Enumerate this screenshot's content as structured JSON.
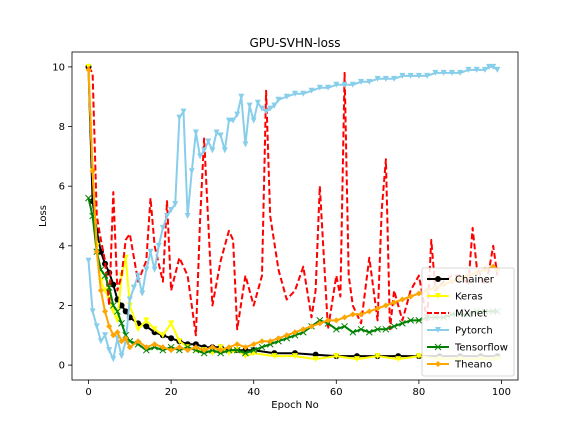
{
  "chart_data": {
    "type": "line",
    "title": "GPU-SVHN-loss",
    "xlabel": "Epoch No",
    "ylabel": "Loss",
    "xlim": [
      -4,
      104
    ],
    "ylim": [
      -0.5,
      10.5
    ],
    "xticks": [
      0,
      20,
      40,
      60,
      80,
      100
    ],
    "yticks": [
      0,
      2,
      4,
      6,
      8,
      10
    ],
    "grid": false,
    "legend_position": "lower-right",
    "series": [
      {
        "name": "Chainer",
        "color": "#000000",
        "linestyle": "solid",
        "marker": "circle",
        "x": [
          0,
          1,
          2,
          3,
          4,
          5,
          6,
          7,
          8,
          9,
          10,
          12,
          14,
          16,
          18,
          20,
          22,
          24,
          26,
          28,
          30,
          32,
          34,
          36,
          38,
          40,
          45,
          50,
          55,
          60,
          65,
          70,
          75,
          80,
          85,
          90,
          95,
          99
        ],
        "y": [
          10,
          5.5,
          4.5,
          3.8,
          3.4,
          3.1,
          2.7,
          2.2,
          2.0,
          1.8,
          1.6,
          1.4,
          1.3,
          1.1,
          1.0,
          0.9,
          0.8,
          0.7,
          0.7,
          0.6,
          0.6,
          0.6,
          0.5,
          0.5,
          0.5,
          0.5,
          0.4,
          0.4,
          0.35,
          0.3,
          0.3,
          0.3,
          0.3,
          0.3,
          0.3,
          0.3,
          0.3,
          0.3
        ]
      },
      {
        "name": "Keras",
        "color": "#ffff00",
        "linestyle": "solid",
        "marker": "triangle-down",
        "x": [
          0,
          1,
          2,
          3,
          4,
          5,
          6,
          7,
          8,
          9,
          10,
          12,
          14,
          16,
          18,
          20,
          22,
          24,
          26,
          28,
          30,
          32,
          34,
          36,
          38,
          40,
          45,
          50,
          55,
          60,
          65,
          70,
          75,
          80,
          85,
          90,
          95,
          99
        ],
        "y": [
          10,
          6.5,
          4.0,
          2.8,
          2.5,
          2.2,
          1.8,
          1.5,
          3.0,
          3.6,
          2.0,
          1.2,
          1.5,
          1.2,
          1.0,
          1.4,
          0.8,
          0.6,
          0.5,
          0.5,
          0.4,
          0.6,
          0.4,
          0.5,
          0.3,
          0.4,
          0.3,
          0.3,
          0.2,
          0.3,
          0.2,
          0.3,
          0.2,
          0.3,
          0.2,
          0.2,
          0.2,
          0.2
        ]
      },
      {
        "name": "MXnet",
        "color": "#ff0000",
        "linestyle": "dashed",
        "marker": "none",
        "x": [
          0,
          1,
          2,
          3,
          4,
          5,
          6,
          7,
          8,
          9,
          10,
          12,
          14,
          15,
          16,
          18,
          19,
          20,
          22,
          24,
          26,
          27,
          28,
          30,
          32,
          34,
          35,
          36,
          38,
          40,
          42,
          43,
          44,
          46,
          48,
          50,
          52,
          54,
          55,
          56,
          58,
          60,
          61,
          62,
          63,
          64,
          66,
          68,
          70,
          71,
          72,
          73,
          74,
          76,
          78,
          80,
          82,
          83,
          84,
          86,
          88,
          90,
          92,
          93,
          94,
          96,
          97,
          98,
          99
        ],
        "y": [
          10,
          9.8,
          5.0,
          4.2,
          3.5,
          2.0,
          5.8,
          2.5,
          3.0,
          4.2,
          4.4,
          2.8,
          3.5,
          5.6,
          4.0,
          2.8,
          5.5,
          2.5,
          3.6,
          3.0,
          1.0,
          4.8,
          7.6,
          2.0,
          3.5,
          4.5,
          4.2,
          1.2,
          3.0,
          2.0,
          3.0,
          9.2,
          5.0,
          3.2,
          2.2,
          2.5,
          3.3,
          1.6,
          2.5,
          6.0,
          1.2,
          3.0,
          2.3,
          9.8,
          3.0,
          2.0,
          1.4,
          3.6,
          1.5,
          5.2,
          6.9,
          1.2,
          2.5,
          1.5,
          2.5,
          3.0,
          1.5,
          4.2,
          2.5,
          2.8,
          3.0,
          3.0,
          2.7,
          4.6,
          3.3,
          2.7,
          3.2,
          4.0,
          3.0
        ]
      },
      {
        "name": "Pytorch",
        "color": "#87ceeb",
        "linestyle": "solid",
        "marker": "triangle-down",
        "x": [
          0,
          1,
          2,
          3,
          4,
          5,
          6,
          7,
          8,
          9,
          10,
          11,
          12,
          13,
          14,
          15,
          16,
          17,
          18,
          19,
          20,
          21,
          22,
          23,
          24,
          25,
          26,
          27,
          28,
          29,
          30,
          31,
          32,
          33,
          34,
          35,
          36,
          37,
          38,
          39,
          40,
          41,
          42,
          43,
          44,
          45,
          46,
          48,
          50,
          52,
          54,
          56,
          58,
          60,
          62,
          64,
          66,
          68,
          70,
          72,
          74,
          76,
          78,
          80,
          82,
          84,
          86,
          88,
          90,
          92,
          94,
          96,
          97,
          98,
          99
        ],
        "y": [
          3.5,
          1.8,
          1.3,
          0.8,
          1.0,
          0.5,
          0.2,
          0.9,
          0.3,
          0.8,
          2.2,
          2.6,
          3.0,
          2.4,
          3.2,
          3.8,
          3.2,
          4.0,
          4.6,
          5.0,
          5.2,
          5.4,
          8.3,
          8.5,
          5.0,
          6.5,
          7.8,
          7.0,
          7.2,
          7.5,
          7.2,
          7.8,
          7.7,
          7.2,
          8.2,
          8.2,
          8.4,
          9.0,
          7.4,
          8.7,
          8.2,
          8.8,
          8.6,
          8.5,
          8.6,
          8.7,
          8.9,
          9.0,
          9.1,
          9.1,
          9.2,
          9.3,
          9.3,
          9.4,
          9.4,
          9.4,
          9.5,
          9.5,
          9.6,
          9.6,
          9.6,
          9.7,
          9.7,
          9.7,
          9.7,
          9.8,
          9.8,
          9.8,
          9.8,
          9.9,
          9.9,
          9.9,
          10.0,
          10.0,
          9.9
        ]
      },
      {
        "name": "Tensorflow",
        "color": "#008000",
        "linestyle": "solid",
        "marker": "x",
        "x": [
          0,
          1,
          2,
          3,
          4,
          5,
          6,
          7,
          8,
          9,
          10,
          12,
          14,
          16,
          18,
          20,
          22,
          24,
          26,
          28,
          30,
          32,
          34,
          36,
          38,
          40,
          42,
          44,
          46,
          48,
          50,
          52,
          54,
          56,
          58,
          60,
          62,
          64,
          66,
          68,
          70,
          72,
          74,
          76,
          78,
          80,
          82,
          84,
          86,
          88,
          90,
          92,
          94,
          96,
          98,
          99
        ],
        "y": [
          5.6,
          5.0,
          3.8,
          3.2,
          3.0,
          2.6,
          2.0,
          1.8,
          1.4,
          1.0,
          0.8,
          0.7,
          0.5,
          0.6,
          0.5,
          0.6,
          0.5,
          0.6,
          0.5,
          0.4,
          0.5,
          0.4,
          0.5,
          0.5,
          0.4,
          0.5,
          0.6,
          0.7,
          0.8,
          0.9,
          1.0,
          1.1,
          1.3,
          1.5,
          1.4,
          1.2,
          1.3,
          1.1,
          1.2,
          1.1,
          1.2,
          1.2,
          1.3,
          1.4,
          1.5,
          1.5,
          1.6,
          1.6,
          1.6,
          1.7,
          1.7,
          1.7,
          1.8,
          1.8,
          1.8,
          1.8
        ]
      },
      {
        "name": "Theano",
        "color": "#ffa500",
        "linestyle": "solid",
        "marker": "diamond",
        "x": [
          0,
          1,
          2,
          3,
          4,
          5,
          6,
          7,
          8,
          9,
          10,
          12,
          14,
          16,
          18,
          20,
          22,
          24,
          26,
          28,
          30,
          32,
          34,
          36,
          38,
          40,
          42,
          44,
          46,
          48,
          50,
          52,
          54,
          56,
          58,
          60,
          62,
          64,
          66,
          68,
          70,
          72,
          74,
          76,
          78,
          80,
          82,
          84,
          86,
          88,
          90,
          92,
          94,
          96,
          98,
          99
        ],
        "y": [
          9.9,
          6.5,
          3.8,
          2.5,
          1.8,
          1.3,
          1.0,
          1.1,
          0.8,
          0.9,
          0.6,
          0.8,
          0.6,
          0.7,
          0.6,
          0.5,
          0.6,
          0.5,
          0.6,
          0.5,
          0.6,
          0.5,
          0.6,
          0.7,
          0.6,
          0.7,
          0.8,
          0.8,
          0.9,
          1.0,
          1.1,
          1.2,
          1.3,
          1.4,
          1.5,
          1.5,
          1.6,
          1.7,
          1.7,
          1.8,
          1.9,
          2.0,
          2.1,
          2.2,
          2.3,
          2.4,
          2.5,
          2.6,
          2.7,
          2.8,
          2.9,
          3.0,
          3.1,
          3.2,
          3.3,
          3.2
        ]
      }
    ]
  }
}
